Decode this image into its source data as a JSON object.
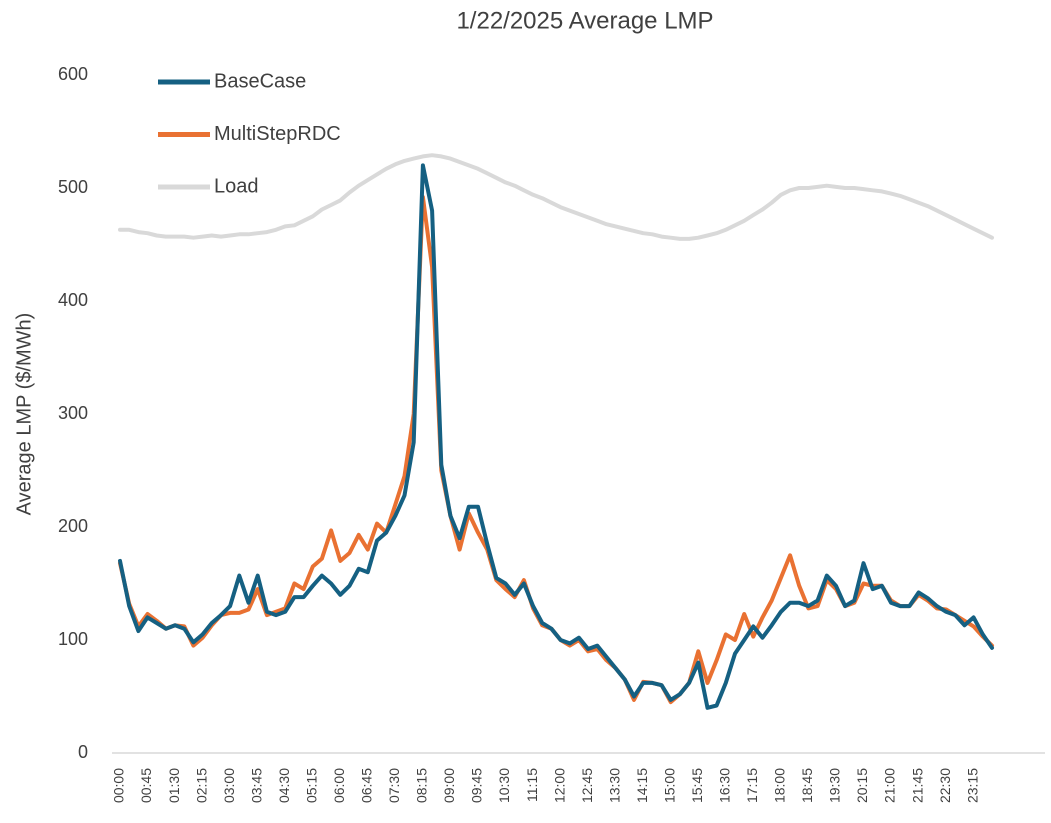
{
  "chart_data": {
    "type": "line",
    "title": "1/22/2025 Average LMP",
    "y_label": "Average LMP ($/MWh)",
    "categories": [
      "00:00",
      null,
      null,
      "00:45",
      null,
      null,
      "01:30",
      null,
      null,
      "02:15",
      null,
      null,
      "03:00",
      null,
      null,
      "03:45",
      null,
      null,
      "04:30",
      null,
      null,
      "05:15",
      null,
      null,
      "06:00",
      null,
      null,
      "06:45",
      null,
      null,
      "07:30",
      null,
      null,
      "08:15",
      null,
      null,
      "09:00",
      null,
      null,
      "09:45",
      null,
      null,
      "10:30",
      null,
      null,
      "11:15",
      null,
      null,
      "12:00",
      null,
      null,
      "12:45",
      null,
      null,
      "13:30",
      null,
      null,
      "14:15",
      null,
      null,
      "15:00",
      null,
      null,
      "15:45",
      null,
      null,
      "16:30",
      null,
      null,
      "17:15",
      null,
      null,
      "18:00",
      null,
      null,
      "18:45",
      null,
      null,
      "19:30",
      null,
      null,
      "20:15",
      null,
      null,
      "21:00",
      null,
      null,
      "21:45",
      null,
      null,
      "22:30",
      null,
      null,
      "23:15",
      null,
      null
    ],
    "series": [
      {
        "name": "BaseCase",
        "color": "#156082",
        "values": [
          170,
          130,
          108,
          120,
          115,
          110,
          113,
          110,
          98,
          105,
          115,
          122,
          130,
          157,
          133,
          157,
          125,
          122,
          125,
          138,
          138,
          148,
          157,
          150,
          140,
          148,
          163,
          160,
          188,
          195,
          210,
          228,
          275,
          520,
          480,
          255,
          210,
          190,
          218,
          218,
          185,
          155,
          150,
          140,
          150,
          130,
          115,
          110,
          100,
          97,
          102,
          92,
          95,
          85,
          75,
          65,
          50,
          62,
          62,
          60,
          47,
          52,
          62,
          80,
          40,
          42,
          62,
          88,
          100,
          112,
          102,
          113,
          125,
          133,
          133,
          130,
          135,
          157,
          148,
          130,
          135,
          168,
          145,
          148,
          133,
          130,
          130,
          142,
          137,
          130,
          125,
          122,
          113,
          120,
          105,
          93
        ]
      },
      {
        "name": "MultiStepRDC",
        "color": "#e97132",
        "values": [
          168,
          132,
          112,
          123,
          117,
          110,
          113,
          112,
          95,
          102,
          113,
          122,
          124,
          124,
          127,
          145,
          122,
          125,
          128,
          150,
          145,
          165,
          172,
          197,
          170,
          177,
          193,
          180,
          203,
          195,
          220,
          245,
          300,
          492,
          430,
          250,
          210,
          180,
          212,
          195,
          180,
          153,
          145,
          138,
          153,
          128,
          113,
          110,
          100,
          95,
          100,
          90,
          92,
          82,
          75,
          65,
          47,
          63,
          62,
          60,
          45,
          52,
          62,
          90,
          62,
          82,
          105,
          100,
          123,
          103,
          120,
          135,
          155,
          175,
          148,
          128,
          130,
          153,
          145,
          130,
          133,
          150,
          148,
          148,
          135,
          130,
          130,
          140,
          135,
          128,
          127,
          122,
          117,
          112,
          103,
          95
        ]
      },
      {
        "name": "Load",
        "color": "#d9d9d9",
        "values": [
          463,
          463,
          461,
          460,
          458,
          457,
          457,
          457,
          456,
          457,
          458,
          457,
          458,
          459,
          459,
          460,
          461,
          463,
          466,
          467,
          471,
          475,
          481,
          485,
          489,
          496,
          502,
          507,
          512,
          517,
          521,
          524,
          526,
          528,
          529,
          528,
          526,
          523,
          520,
          517,
          513,
          509,
          505,
          502,
          498,
          494,
          491,
          487,
          483,
          480,
          477,
          474,
          471,
          468,
          466,
          464,
          462,
          460,
          459,
          457,
          456,
          455,
          455,
          456,
          458,
          460,
          463,
          467,
          471,
          476,
          481,
          487,
          494,
          498,
          500,
          500,
          501,
          502,
          501,
          500,
          500,
          499,
          498,
          497,
          495,
          493,
          490,
          487,
          484,
          480,
          476,
          472,
          468,
          464,
          460,
          456
        ]
      }
    ],
    "ylim": [
      0,
      600
    ],
    "yticks": [
      0,
      100,
      200,
      300,
      400,
      500,
      600
    ],
    "grid": false,
    "legend": "upper left"
  }
}
